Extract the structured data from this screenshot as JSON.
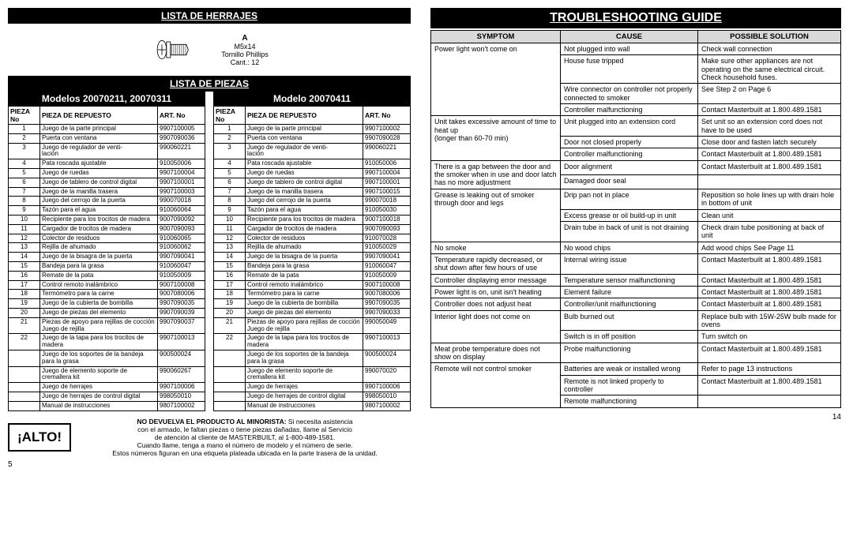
{
  "left": {
    "herrajes_title": "LISTA DE HERRAJES",
    "hardware": {
      "a": "A",
      "size": "M5x14",
      "desc": "Tornillo Phillips",
      "qty": "Cant.: 12"
    },
    "piezas_title": "LISTA DE PIEZAS",
    "table_headers": {
      "c1": "PIEZA No",
      "c2": "PIEZA DE REPUESTO",
      "c3": "ART. No"
    },
    "panel1": {
      "title": "Modelos 20070211, 20070311",
      "rows": [
        [
          "1",
          "Juego de la parte principal",
          "9907100005"
        ],
        [
          "2",
          "Puerta con ventana",
          "9907090036"
        ],
        [
          "3",
          "Juego de regulador de venti-\nlación",
          "990060221"
        ],
        [
          "4",
          "Pata roscada ajustable",
          "910050006"
        ],
        [
          "5",
          "Juego de ruedas",
          "9907100004"
        ],
        [
          "6",
          "Juego de tablero de control digital",
          "9907100001"
        ],
        [
          "7",
          "Juego de la manilla trasera",
          "9907100003"
        ],
        [
          "8",
          "Juego del cerrojo de la puerta",
          "990070018"
        ],
        [
          "9",
          "Tazón para el agua",
          "910060064"
        ],
        [
          "10",
          "Recipiente para los trocitos de madera",
          "9007090092"
        ],
        [
          "11",
          "Cargador de trocitos de madera",
          "9007090093"
        ],
        [
          "12",
          "Colector de residuos",
          "910060065"
        ],
        [
          "13",
          "Rejilla de ahumado",
          "910060062"
        ],
        [
          "14",
          "Juego de la bisagra de la puerta",
          "9907090041"
        ],
        [
          "15",
          "Bandeja para la grasa",
          "910060047"
        ],
        [
          "16",
          "Remate de la pata",
          "910050009"
        ],
        [
          "17",
          "Control remoto inalámbrico",
          "9007100008"
        ],
        [
          "18",
          "Termómetro para la carne",
          "9007080006"
        ],
        [
          "19",
          "Juego de la cubierta de bombilla",
          "9907090035"
        ],
        [
          "20",
          "Juego de piezas del elemento",
          "9907090039"
        ],
        [
          "21",
          "Piezas de apoyo para rejillas de cocción\nJuego de rejilla",
          "9907090037"
        ],
        [
          "22",
          "Juego de la tapa para los trocitos de madera",
          "9907100013"
        ],
        [
          "",
          "Juego de los soportes de la bandeja para la grasa",
          "900500024"
        ],
        [
          "",
          "Juego de elemento soporte de cremallera kit",
          "990060267"
        ],
        [
          "",
          "Juego de herrajes",
          "9907100006"
        ],
        [
          "",
          "Juego de herrajes de control digital",
          "998050010"
        ],
        [
          "",
          "Manual de instrucciones",
          "9807100002"
        ]
      ]
    },
    "panel2": {
      "title": "Modelo 20070411",
      "rows": [
        [
          "1",
          "Juego de la parte principal",
          "9907100002"
        ],
        [
          "2",
          "Puerta con ventana",
          "9907090028"
        ],
        [
          "3",
          "Juego de regulador de venti-\nlación",
          "990060221"
        ],
        [
          "4",
          "Pata roscada ajustable",
          "910050006"
        ],
        [
          "5",
          "Juego de ruedas",
          "9907100004"
        ],
        [
          "6",
          "Juego de tablero de control digital",
          "9907100001"
        ],
        [
          "7",
          "Juego de la manilla trasera",
          "9907100015"
        ],
        [
          "8",
          "Juego del cerrojo de la puerta",
          "990070018"
        ],
        [
          "9",
          "Tazón para el agua",
          "910050030"
        ],
        [
          "10",
          "Recipiente para los trocitos de madera",
          "9007100018"
        ],
        [
          "11",
          "Cargador de trocitos de madera",
          "9007090093"
        ],
        [
          "12",
          "Colector de residuos",
          "910070028"
        ],
        [
          "13",
          "Rejilla de ahumado",
          "910050029"
        ],
        [
          "14",
          "Juego de la bisagra de la puerta",
          "9907090041"
        ],
        [
          "15",
          "Bandeja para la grasa",
          "910060047"
        ],
        [
          "16",
          "Remate de la pata",
          "910050009"
        ],
        [
          "17",
          "Control remoto inalámbrico",
          "9007100008"
        ],
        [
          "18",
          "Termómetro para la carne",
          "9007080006"
        ],
        [
          "19",
          "Juego de la cubierta de bombilla",
          "9907090035"
        ],
        [
          "20",
          "Juego de piezas del elemento",
          "9907090033"
        ],
        [
          "21",
          "Piezas de apoyo para rejillas de cocción\nJuego de rejilla",
          "990050049"
        ],
        [
          "22",
          "Juego de la tapa para los trocitos de madera",
          "9907100013"
        ],
        [
          "",
          "Juego de los soportes de la bandeja para la grasa",
          "900500024"
        ],
        [
          "",
          "Juego de elemento soporte de cremallera kit",
          "990070020"
        ],
        [
          "",
          "Juego de herrajes",
          "9907100006"
        ],
        [
          "",
          "Juego de herrajes de control digital",
          "998050010"
        ],
        [
          "",
          "Manual de instrucciones",
          "9807100002"
        ]
      ]
    },
    "stop_label": "¡ALTO!",
    "stop_text_bold": "NO DEVUELVA EL PRODUCTO AL MINORISTA:",
    "stop_text_rest": " Si necesita asistencia\ncon el armado, le faltan piezas o tiene piezas dañadas, llame al Servicio\nde atención al cliente de MASTERBUILT, al 1-800-489-1581.\nCuando llame, tenga a mano el número de modelo y el número de serie.\nEstos números figuran en una etiqueta plateada ubicada en la parte trasera de la unidad.",
    "page_no": "5"
  },
  "right": {
    "title": "TROUBLESHOOTING GUIDE",
    "headers": {
      "c1": "SYMPTOM",
      "c2": "CAUSE",
      "c3": "POSSIBLE SOLUTION"
    },
    "groups": [
      {
        "symptom": "Power light won't come on",
        "rows": [
          [
            "Not plugged into wall",
            "Check wall connection"
          ],
          [
            "House fuse tripped",
            "Make sure other appliances are not operating on the same electrical circuit. Check household fuses."
          ],
          [
            "Wire connector on controller not properly connected to smoker",
            "See Step 2 on Page 6"
          ],
          [
            "Controller malfunctioning",
            "Contact Masterbuilt at 1.800.489.1581"
          ]
        ]
      },
      {
        "symptom": "Unit takes excessive amount of time to heat up\n(longer than 60-70 min)",
        "rows": [
          [
            "Unit plugged into an extension cord",
            "Set unit so an extension cord does not have to be used"
          ],
          [
            "Door not closed properly",
            "Close door and fasten latch securely"
          ],
          [
            "Controller malfunctioning",
            "Contact Masterbuilt at 1.800.489.1581"
          ]
        ]
      },
      {
        "symptom": "There is a gap between the door and the smoker when in use and door latch has no more adjustment",
        "rows": [
          [
            "Door alignment",
            "Contact Masterbuilt at 1.800.489.1581"
          ],
          [
            "Damaged door seal",
            ""
          ]
        ]
      },
      {
        "symptom": "Grease is leaking out of smoker through door and legs",
        "rows": [
          [
            "Drip pan not in place",
            "Reposition so hole lines up with drain hole in bottom of unit"
          ],
          [
            "Excess grease or oil build-up in unit",
            "Clean unit"
          ],
          [
            "Drain tube in back of unit is not draining",
            "Check drain tube positioning at back of unit"
          ]
        ]
      },
      {
        "symptom": "No smoke",
        "rows": [
          [
            "No wood chips",
            "Add wood chips See Page 11"
          ]
        ]
      },
      {
        "symptom": "Temperature rapidly decreased, or shut down after few hours of use",
        "rows": [
          [
            "Internal wiring issue",
            "Contact Masterbuilt at 1.800.489.1581"
          ]
        ]
      },
      {
        "symptom": "Controller displaying error message",
        "rows": [
          [
            "Temperature sensor malfunctioning",
            "Contact Masterbuilt at 1.800.489.1581"
          ]
        ]
      },
      {
        "symptom": "Power light is on, unit isn't heating",
        "rows": [
          [
            "Element failure",
            "Contact Masterbuilt at 1.800.489.1581"
          ]
        ]
      },
      {
        "symptom": "Controller does not adjust heat",
        "rows": [
          [
            "Controller/unit malfunctioning",
            "Contact Masterbuilt at 1.800.489.1581"
          ]
        ]
      },
      {
        "symptom": "Interior light does not come on",
        "rows": [
          [
            "Bulb burned out",
            "Replace bulb with 15W-25W bulb made for ovens"
          ],
          [
            "Switch is in off position",
            "Turn switch on"
          ]
        ]
      },
      {
        "symptom": "Meat probe temperature does not show on display",
        "rows": [
          [
            "Probe malfunctioning",
            "Contact Masterbuilt at 1.800.489.1581"
          ]
        ]
      },
      {
        "symptom": "Remote will not control smoker",
        "rows": [
          [
            "Batteries are weak or installed wrong",
            "Refer to page 13 instructions"
          ],
          [
            "Remote is not linked properly to controller",
            "Contact Masterbuilt at 1.800.489.1581"
          ],
          [
            "Remote malfunctioning",
            ""
          ]
        ]
      }
    ],
    "page_no": "14"
  }
}
